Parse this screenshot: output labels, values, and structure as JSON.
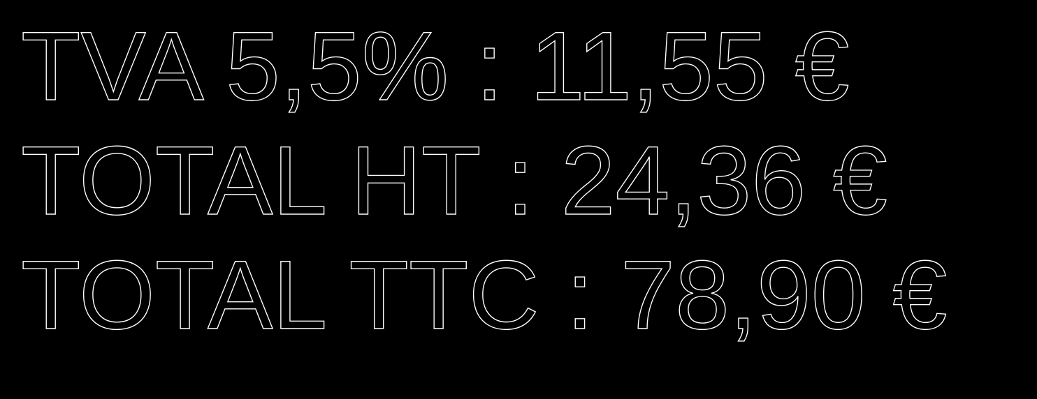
{
  "summary": {
    "lines": [
      {
        "text": "TVA 5,5% : 11,55 €"
      },
      {
        "text": "TOTAL HT : 24,36 €"
      },
      {
        "text": "TOTAL TTC : 78,90 €"
      }
    ]
  },
  "colors": {
    "background": "#000000",
    "text_outline": "#ffffff"
  }
}
